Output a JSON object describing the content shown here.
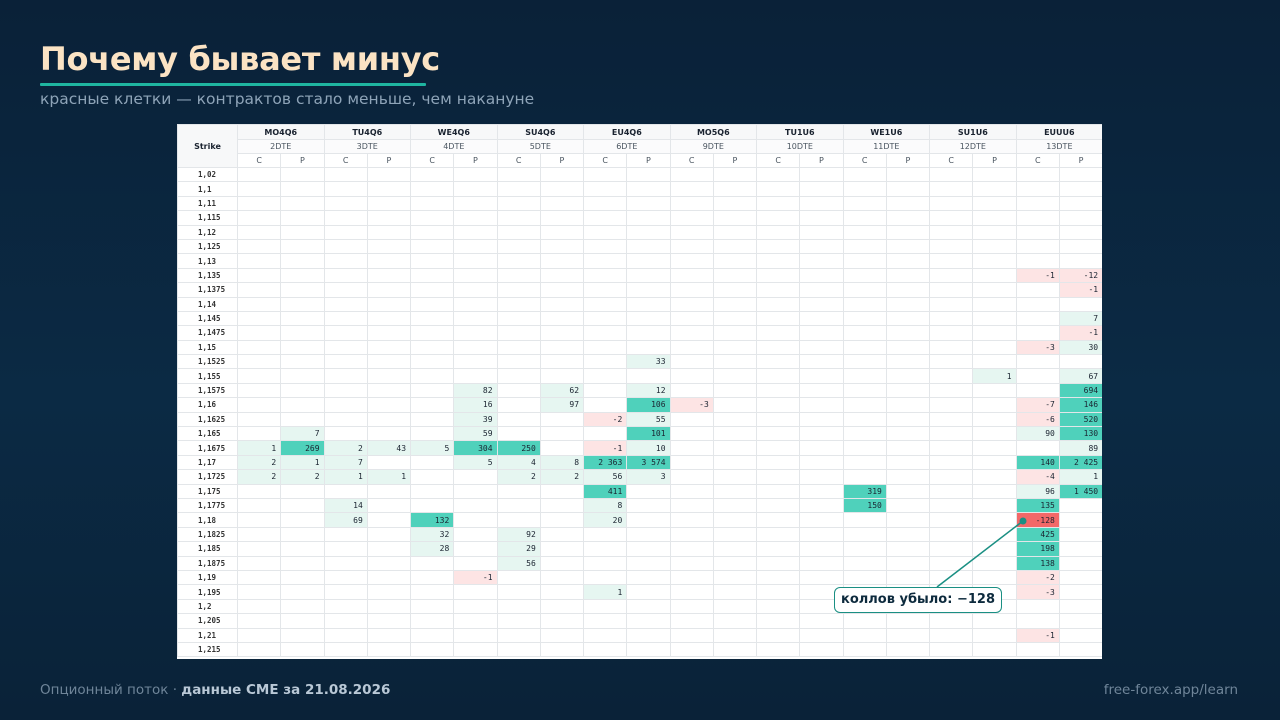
{
  "slide": {
    "title": "Почему бывает минус",
    "subtitle": "красные клетки — контрактов стало меньше, чем накануне"
  },
  "table": {
    "strike_header": "Strike",
    "series": [
      {
        "code": "MO4Q6",
        "dte": "2DTE"
      },
      {
        "code": "TU4Q6",
        "dte": "3DTE"
      },
      {
        "code": "WE4Q6",
        "dte": "4DTE"
      },
      {
        "code": "SU4Q6",
        "dte": "5DTE"
      },
      {
        "code": "EU4Q6",
        "dte": "6DTE"
      },
      {
        "code": "MO5Q6",
        "dte": "9DTE"
      },
      {
        "code": "TU1U6",
        "dte": "10DTE"
      },
      {
        "code": "WE1U6",
        "dte": "11DTE"
      },
      {
        "code": "SU1U6",
        "dte": "12DTE"
      },
      {
        "code": "EUUU6",
        "dte": "13DTE"
      }
    ],
    "call_label": "C",
    "put_label": "P",
    "rows": [
      {
        "strike": "1,02",
        "cells": {}
      },
      {
        "strike": "1,1",
        "cells": {}
      },
      {
        "strike": "1,11",
        "cells": {}
      },
      {
        "strike": "1,115",
        "cells": {}
      },
      {
        "strike": "1,12",
        "cells": {}
      },
      {
        "strike": "1,125",
        "cells": {}
      },
      {
        "strike": "1,13",
        "cells": {}
      },
      {
        "strike": "1,135",
        "cells": {
          "18": "-1",
          "19": "-12"
        }
      },
      {
        "strike": "1,1375",
        "cells": {
          "19": "-1"
        }
      },
      {
        "strike": "1,14",
        "cells": {}
      },
      {
        "strike": "1,145",
        "cells": {
          "19": "7"
        }
      },
      {
        "strike": "1,1475",
        "cells": {
          "19": "-1"
        }
      },
      {
        "strike": "1,15",
        "cells": {
          "18": "-3",
          "19": "30"
        }
      },
      {
        "strike": "1,1525",
        "cells": {
          "9": "33"
        }
      },
      {
        "strike": "1,155",
        "cells": {
          "17": "1",
          "19": "67"
        }
      },
      {
        "strike": "1,1575",
        "cells": {
          "5": "82",
          "7": "62",
          "9": "12",
          "19": "694"
        }
      },
      {
        "strike": "1,16",
        "cells": {
          "5": "16",
          "7": "97",
          "9": "106",
          "10": "-3",
          "18": "-7",
          "19": "146"
        }
      },
      {
        "strike": "1,1625",
        "cells": {
          "5": "39",
          "8": "-2",
          "9": "55",
          "18": "-6",
          "19": "520"
        }
      },
      {
        "strike": "1,165",
        "cells": {
          "1": "7",
          "5": "59",
          "9": "101",
          "18": "90",
          "19": "130"
        }
      },
      {
        "strike": "1,1675",
        "cells": {
          "0": "1",
          "1": "269",
          "2": "2",
          "3": "43",
          "4": "5",
          "5": "304",
          "6": "250",
          "8": "-1",
          "9": "10",
          "19": "89"
        }
      },
      {
        "strike": "1,17",
        "cells": {
          "0": "2",
          "1": "1",
          "2": "7",
          "5": "5",
          "6": "4",
          "7": "8",
          "8": "2 363",
          "9": "3 574",
          "18": "140",
          "19": "2 425"
        }
      },
      {
        "strike": "1,1725",
        "cells": {
          "0": "2",
          "1": "2",
          "2": "1",
          "3": "1",
          "6": "2",
          "7": "2",
          "8": "56",
          "9": "3",
          "18": "-4",
          "19": "1"
        }
      },
      {
        "strike": "1,175",
        "cells": {
          "8": "411",
          "14": "319",
          "18": "96",
          "19": "1 450"
        }
      },
      {
        "strike": "1,1775",
        "cells": {
          "2": "14",
          "8": "8",
          "14": "150",
          "18": "135"
        }
      },
      {
        "strike": "1,18",
        "cells": {
          "2": "69",
          "4": "132",
          "8": "20",
          "18": "-128"
        }
      },
      {
        "strike": "1,1825",
        "cells": {
          "4": "32",
          "6": "92",
          "18": "425"
        }
      },
      {
        "strike": "1,185",
        "cells": {
          "4": "28",
          "6": "29",
          "18": "198"
        }
      },
      {
        "strike": "1,1875",
        "cells": {
          "6": "56",
          "18": "138"
        }
      },
      {
        "strike": "1,19",
        "cells": {
          "5": "-1",
          "18": "-2"
        }
      },
      {
        "strike": "1,195",
        "cells": {
          "8": "1",
          "18": "-3"
        }
      },
      {
        "strike": "1,2",
        "cells": {}
      },
      {
        "strike": "1,205",
        "cells": {}
      },
      {
        "strike": "1,21",
        "cells": {
          "18": "-1"
        }
      },
      {
        "strike": "1,215",
        "cells": {}
      }
    ]
  },
  "callout": {
    "text": "коллов убыло: −128"
  },
  "footer": {
    "source_prefix": "Опционный поток · ",
    "source_bold": "данные CME за 21.08.2026",
    "site": "free-forex.app/learn"
  },
  "colors": {
    "background": "#0b2a44",
    "title": "#fbe3c4",
    "accent": "#1fb5a0",
    "positive_light": "#e6f6f1",
    "positive_strong": "#4fd1bb",
    "negative_light": "#fde4e4",
    "negative_strong": "#f26868"
  }
}
